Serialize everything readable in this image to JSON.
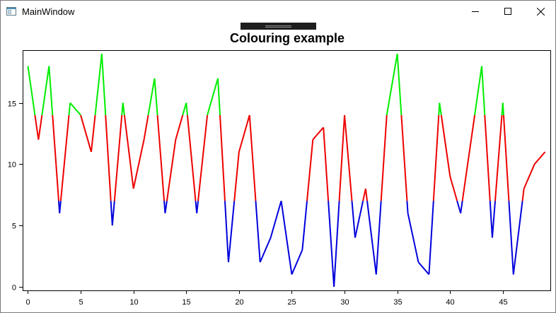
{
  "window": {
    "title": "MainWindow",
    "icon": "app-window-icon",
    "controls": [
      "minimize-icon",
      "maximize-icon",
      "close-icon"
    ]
  },
  "chart_data": {
    "type": "line",
    "title": "Colouring example",
    "xlabel": "",
    "ylabel": "",
    "xlim": [
      -0.5,
      49.5
    ],
    "ylim": [
      -0.3,
      19.3
    ],
    "x_ticks": [
      0,
      5,
      10,
      15,
      20,
      25,
      30,
      35,
      40,
      45
    ],
    "y_ticks": [
      0,
      5,
      10,
      15
    ],
    "grid": false,
    "thresholds": [
      7,
      14
    ],
    "colors": {
      "low": "#0000dd",
      "mid": "#ee0000",
      "high": "#00ee00"
    },
    "x": [
      0,
      1,
      2,
      3,
      4,
      5,
      6,
      7,
      8,
      9,
      10,
      11,
      12,
      13,
      14,
      15,
      16,
      17,
      18,
      19,
      20,
      21,
      22,
      23,
      24,
      25,
      26,
      27,
      28,
      29,
      30,
      31,
      32,
      33,
      34,
      35,
      36,
      37,
      38,
      39,
      40,
      41,
      42,
      43,
      44,
      45,
      46,
      47,
      48,
      49
    ],
    "values": [
      18,
      12,
      18,
      6,
      15,
      14,
      11,
      19,
      5,
      15,
      8,
      12,
      17,
      6,
      12,
      15,
      6,
      14,
      17,
      2,
      11,
      14,
      2,
      4,
      7,
      1,
      3,
      12,
      13,
      0,
      14,
      4,
      8,
      1,
      14,
      19,
      6,
      2,
      1,
      15,
      9,
      6,
      12,
      18,
      4,
      15,
      1,
      8,
      10,
      11
    ]
  }
}
